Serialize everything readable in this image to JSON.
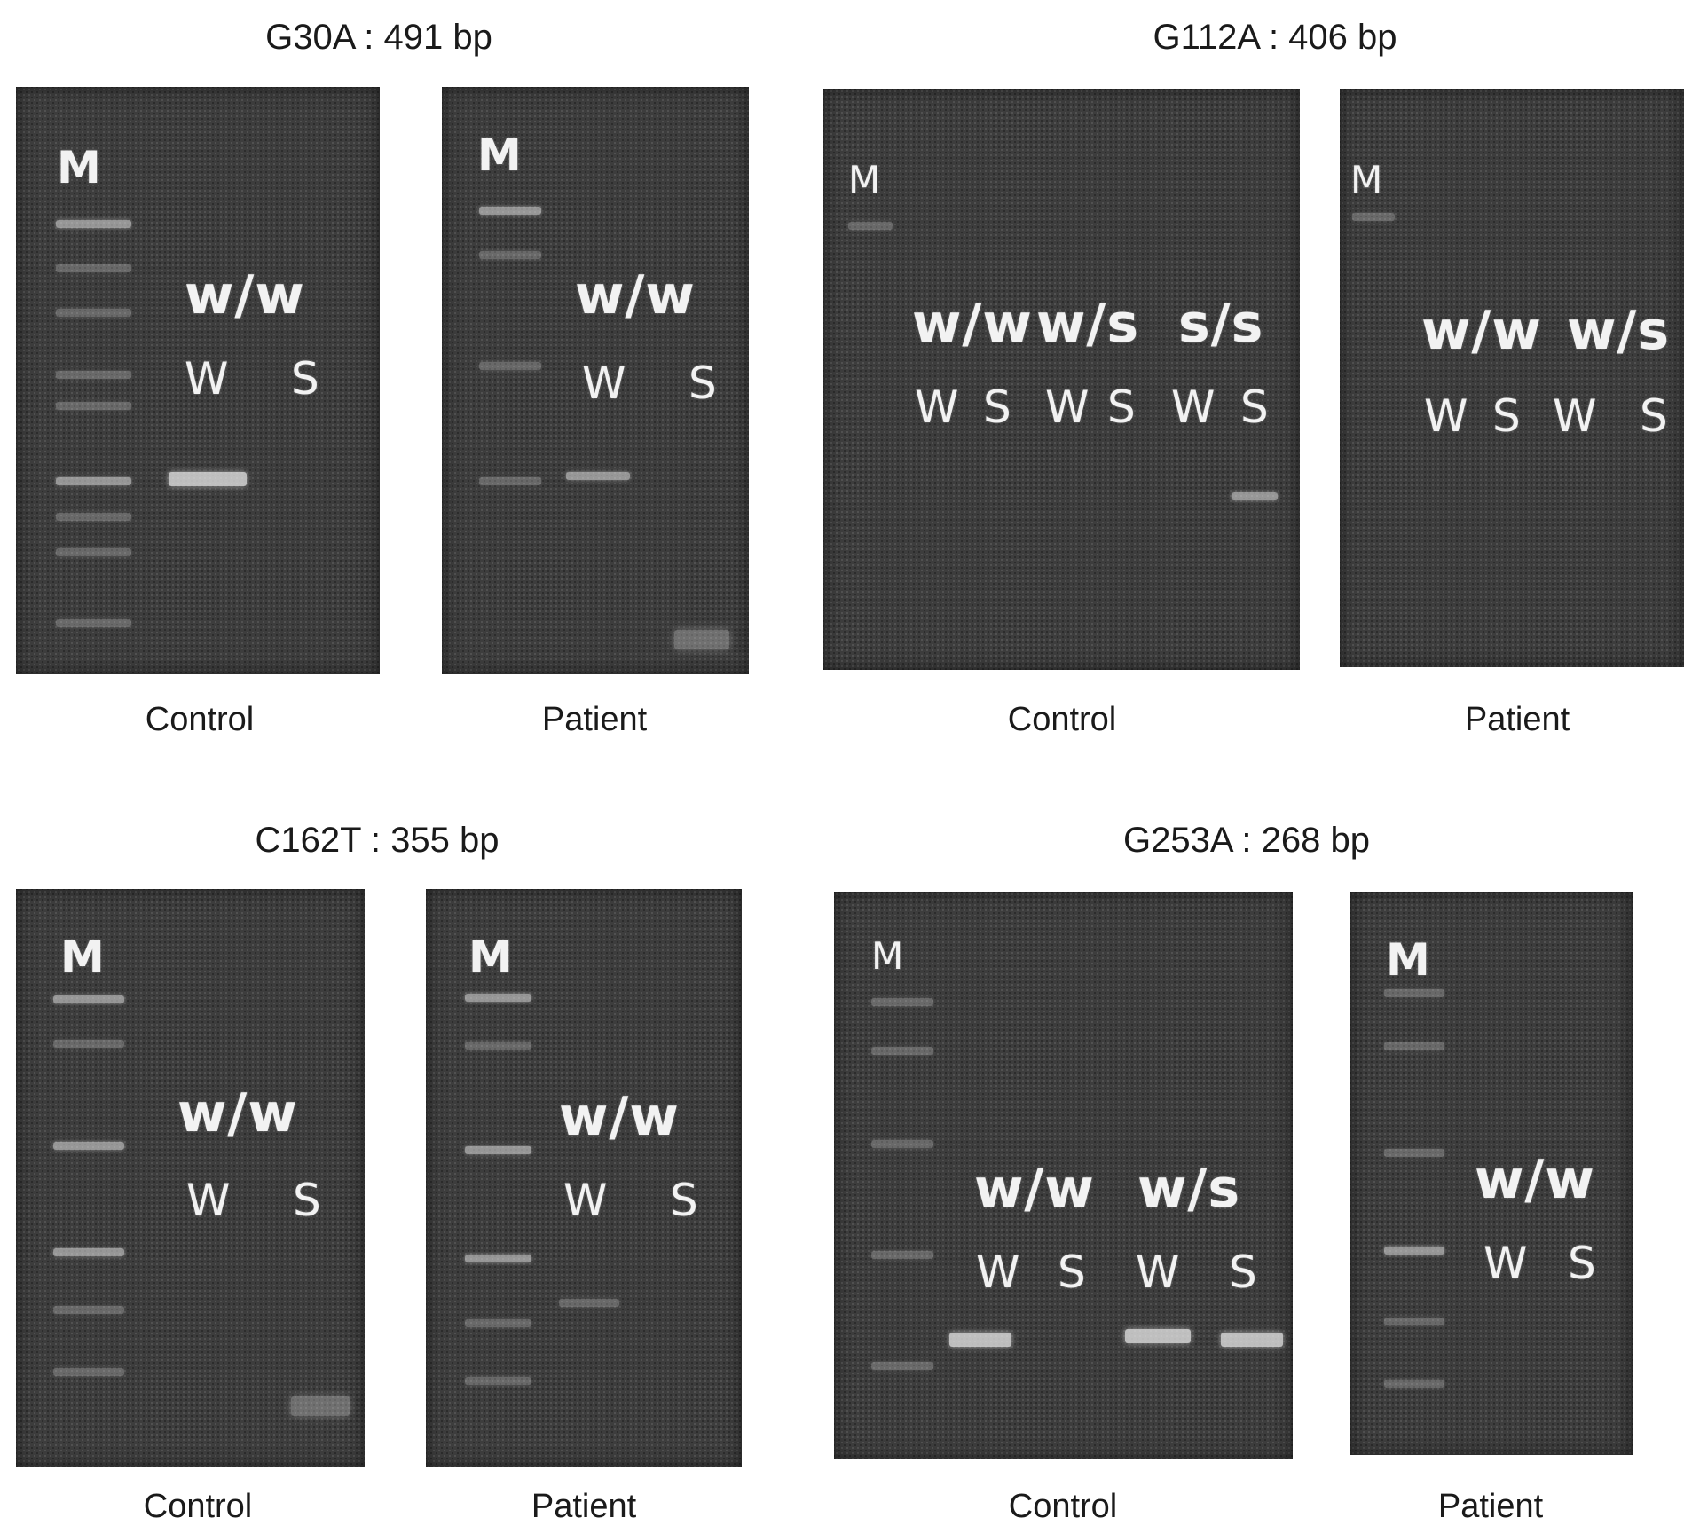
{
  "figure": {
    "panels": [
      {
        "title": "G30A : 491 bp",
        "marker": "M",
        "control": {
          "caption": "Control",
          "genotypes": [
            "w/w"
          ],
          "lanes": [
            "W",
            "S"
          ]
        },
        "patient": {
          "caption": "Patient",
          "genotypes": [
            "w/w"
          ],
          "lanes": [
            "W",
            "S"
          ]
        }
      },
      {
        "title": "G112A : 406 bp",
        "marker": "M",
        "control": {
          "caption": "Control",
          "genotypes": [
            "w/w",
            "w/s",
            "s/s"
          ],
          "lanes": [
            "W",
            "S",
            "W",
            "S",
            "W",
            "S"
          ]
        },
        "patient": {
          "caption": "Patient",
          "genotypes": [
            "w/w",
            "w/s"
          ],
          "lanes": [
            "W",
            "S",
            "W",
            "S"
          ]
        }
      },
      {
        "title": "C162T : 355 bp",
        "marker": "M",
        "control": {
          "caption": "Control",
          "genotypes": [
            "w/w"
          ],
          "lanes": [
            "W",
            "S"
          ]
        },
        "patient": {
          "caption": "Patient",
          "genotypes": [
            "w/w"
          ],
          "lanes": [
            "W",
            "S"
          ]
        }
      },
      {
        "title": "G253A : 268 bp",
        "marker": "M",
        "control": {
          "caption": "Control",
          "genotypes": [
            "w/w",
            "w/s"
          ],
          "lanes": [
            "W",
            "S",
            "W",
            "S"
          ]
        },
        "patient": {
          "caption": "Patient",
          "genotypes": [
            "w/w"
          ],
          "lanes": [
            "W",
            "S"
          ]
        }
      }
    ]
  }
}
